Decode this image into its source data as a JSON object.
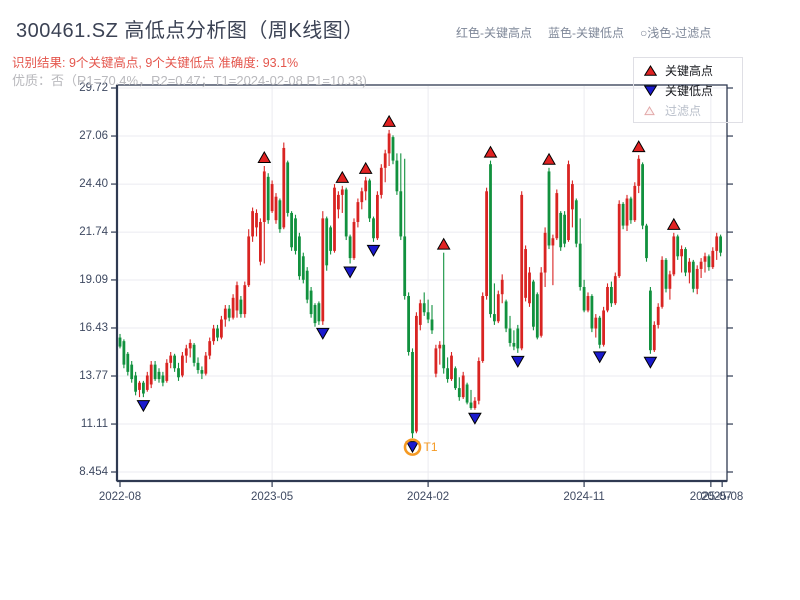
{
  "header": {
    "title": "300461.SZ 高低点分析图（周K线图）",
    "legend_inline": [
      {
        "label": "红色-关键高点"
      },
      {
        "label": "蓝色-关键低点"
      },
      {
        "label": "○浅色-过滤点"
      }
    ],
    "result_line": "识别结果: 9个关键高点, 9个关键低点  准确度: 93.1%",
    "quality_line": "优质：否（R1=70.4%，R2=0.47；T1=2024-02-08 P1=10.33)"
  },
  "legend_box": {
    "items": [
      {
        "label": "关键高点",
        "marker": "triangle-up-icon",
        "fill": "#e02222",
        "stroke": "#000000"
      },
      {
        "label": "关键低点",
        "marker": "triangle-down-icon",
        "fill": "#1a1acd",
        "stroke": "#000000"
      },
      {
        "label": "过滤点",
        "marker": "triangle-hollow-icon",
        "fill": "#fdf4f4",
        "stroke": "#e2a9a9"
      }
    ]
  },
  "chart_data": {
    "type": "candlestick",
    "title": "300461.SZ weekly K-line with key high/low markers",
    "ylim": [
      8.454,
      29.72
    ],
    "y_ticks": [
      29.72,
      27.06,
      24.4,
      21.74,
      19.09,
      16.43,
      13.77,
      11.11,
      8.454
    ],
    "y_tick_labels": [
      "29.72",
      "27.06",
      "24.40",
      "21.74",
      "19.09",
      "16.43",
      "13.77",
      "11.11",
      "8.454"
    ],
    "x_ticks": [
      {
        "label": "2022-08",
        "i": 0,
        "grid": false
      },
      {
        "label": "2023-05",
        "i": 39,
        "grid": true
      },
      {
        "label": "2024-02",
        "i": 79,
        "grid": true
      },
      {
        "label": "2024-11",
        "i": 119,
        "grid": true
      },
      {
        "label": "2025-07",
        "i": 151.5,
        "grid": true
      },
      {
        "label": "2025-08",
        "i": 154.4,
        "grid": false
      }
    ],
    "colors": {
      "up": "#d92422",
      "down": "#11913e",
      "key_high": "#e02222",
      "key_low": "#1a1acd",
      "marker_stroke": "#000000",
      "axis": "#2f3a52",
      "grid": "#ebebf0",
      "label": "#3e4961",
      "t1": "#f59a23"
    },
    "grid": true,
    "legend_position": "top-right",
    "candles_format": [
      "open",
      "high",
      "low",
      "close"
    ],
    "candles": [
      [
        15.9,
        16.1,
        15.3,
        15.4
      ],
      [
        15.7,
        15.8,
        14.2,
        14.4
      ],
      [
        15.0,
        15.1,
        13.8,
        14.0
      ],
      [
        14.4,
        14.6,
        13.4,
        13.6
      ],
      [
        13.8,
        14.0,
        12.7,
        12.9
      ],
      [
        13.0,
        13.5,
        12.6,
        13.4
      ],
      [
        13.4,
        13.5,
        12.6,
        12.8
      ],
      [
        13.0,
        14.0,
        12.9,
        13.8
      ],
      [
        13.3,
        14.6,
        13.1,
        14.4
      ],
      [
        14.4,
        14.6,
        13.5,
        13.6
      ],
      [
        14.0,
        14.2,
        13.4,
        13.6
      ],
      [
        13.8,
        14.0,
        13.2,
        13.4
      ],
      [
        13.5,
        14.7,
        13.4,
        14.5
      ],
      [
        14.5,
        15.1,
        14.2,
        14.9
      ],
      [
        14.9,
        15.0,
        14.0,
        14.2
      ],
      [
        14.2,
        14.5,
        13.5,
        13.7
      ],
      [
        13.8,
        15.1,
        13.7,
        14.9
      ],
      [
        14.9,
        15.5,
        14.5,
        15.3
      ],
      [
        15.3,
        15.8,
        14.8,
        15.6
      ],
      [
        15.5,
        15.6,
        14.3,
        14.5
      ],
      [
        14.5,
        14.8,
        13.9,
        14.1
      ],
      [
        14.1,
        14.3,
        13.6,
        13.9
      ],
      [
        13.9,
        15.1,
        13.8,
        14.9
      ],
      [
        14.9,
        15.9,
        14.7,
        15.7
      ],
      [
        15.7,
        16.6,
        15.5,
        16.4
      ],
      [
        16.4,
        16.6,
        15.7,
        15.9
      ],
      [
        15.9,
        17.1,
        15.8,
        16.9
      ],
      [
        16.9,
        17.7,
        16.5,
        17.5
      ],
      [
        17.5,
        17.7,
        16.8,
        17.0
      ],
      [
        17.0,
        18.3,
        16.9,
        18.1
      ],
      [
        17.4,
        19.0,
        17.0,
        18.8
      ],
      [
        18.0,
        18.2,
        17.0,
        17.2
      ],
      [
        17.2,
        19.0,
        17.0,
        18.8
      ],
      [
        18.8,
        21.9,
        18.7,
        21.5
      ],
      [
        21.5,
        23.1,
        21.2,
        22.9
      ],
      [
        22.0,
        23.0,
        21.5,
        22.8
      ],
      [
        20.1,
        22.5,
        19.9,
        22.3
      ],
      [
        22.3,
        25.4,
        20.0,
        25.1
      ],
      [
        24.8,
        25.0,
        22.2,
        22.4
      ],
      [
        22.9,
        24.6,
        22.8,
        24.4
      ],
      [
        22.4,
        23.9,
        22.2,
        23.7
      ],
      [
        23.5,
        23.6,
        21.7,
        21.9
      ],
      [
        22.0,
        26.7,
        21.9,
        26.4
      ],
      [
        25.6,
        25.7,
        22.6,
        22.8
      ],
      [
        22.8,
        22.9,
        20.7,
        20.9
      ],
      [
        22.5,
        22.7,
        20.5,
        20.7
      ],
      [
        21.5,
        21.7,
        19.1,
        19.3
      ],
      [
        20.4,
        20.6,
        18.9,
        19.1
      ],
      [
        19.6,
        19.8,
        17.8,
        18.0
      ],
      [
        18.5,
        18.7,
        17.0,
        17.2
      ],
      [
        17.7,
        17.8,
        16.5,
        16.7
      ],
      [
        17.8,
        17.9,
        16.6,
        16.8
      ],
      [
        16.8,
        22.9,
        16.6,
        22.5
      ],
      [
        22.5,
        22.6,
        19.6,
        19.9
      ],
      [
        22.0,
        22.1,
        20.5,
        20.7
      ],
      [
        20.7,
        24.4,
        20.6,
        24.2
      ],
      [
        23.0,
        24.0,
        22.5,
        23.8
      ],
      [
        23.8,
        24.3,
        22.8,
        24.1
      ],
      [
        24.1,
        24.2,
        21.3,
        21.5
      ],
      [
        21.5,
        21.6,
        20.0,
        20.3
      ],
      [
        20.3,
        22.5,
        20.2,
        22.3
      ],
      [
        22.3,
        23.6,
        22.0,
        23.4
      ],
      [
        23.4,
        24.2,
        23.0,
        24.0
      ],
      [
        24.0,
        24.8,
        23.5,
        24.6
      ],
      [
        24.6,
        24.7,
        22.3,
        22.5
      ],
      [
        22.5,
        22.6,
        21.2,
        21.4
      ],
      [
        21.4,
        24.0,
        21.3,
        23.8
      ],
      [
        23.8,
        25.5,
        23.6,
        25.3
      ],
      [
        25.3,
        26.3,
        24.5,
        26.1
      ],
      [
        26.1,
        27.4,
        25.4,
        27.2
      ],
      [
        27.0,
        27.1,
        25.5,
        25.7
      ],
      [
        25.7,
        26.1,
        23.8,
        24.0
      ],
      [
        24.0,
        26.1,
        21.3,
        21.5
      ],
      [
        21.5,
        25.8,
        18.0,
        18.2
      ],
      [
        18.2,
        18.4,
        14.9,
        15.1
      ],
      [
        15.1,
        15.3,
        10.33,
        10.6
      ],
      [
        10.7,
        17.3,
        10.6,
        17.1
      ],
      [
        16.6,
        18.0,
        16.3,
        17.8
      ],
      [
        17.8,
        18.4,
        17.1,
        17.3
      ],
      [
        17.3,
        18.0,
        16.7,
        16.9
      ],
      [
        16.9,
        17.7,
        16.1,
        16.3
      ],
      [
        13.9,
        15.5,
        13.7,
        15.3
      ],
      [
        15.3,
        15.7,
        14.4,
        15.5
      ],
      [
        15.5,
        20.6,
        13.9,
        14.2
      ],
      [
        14.2,
        14.8,
        13.4,
        13.6
      ],
      [
        13.6,
        15.1,
        13.5,
        14.9
      ],
      [
        14.2,
        14.3,
        13.0,
        13.1
      ],
      [
        13.1,
        13.7,
        12.4,
        12.6
      ],
      [
        12.6,
        14.0,
        12.5,
        13.8
      ],
      [
        13.3,
        13.4,
        12.2,
        12.3
      ],
      [
        12.3,
        13.0,
        11.9,
        12.0
      ],
      [
        12.0,
        12.6,
        11.9,
        12.4
      ],
      [
        12.4,
        14.8,
        12.2,
        14.6
      ],
      [
        14.6,
        18.4,
        14.5,
        18.2
      ],
      [
        18.2,
        24.2,
        18.0,
        24.0
      ],
      [
        25.5,
        25.7,
        17.0,
        17.2
      ],
      [
        17.2,
        18.9,
        16.6,
        16.8
      ],
      [
        16.8,
        18.5,
        16.7,
        18.3
      ],
      [
        18.3,
        19.4,
        17.8,
        19.1
      ],
      [
        17.9,
        18.0,
        16.2,
        16.4
      ],
      [
        16.4,
        17.1,
        15.4,
        15.6
      ],
      [
        15.6,
        16.3,
        15.2,
        15.4
      ],
      [
        16.4,
        16.6,
        15.05,
        15.3
      ],
      [
        15.3,
        24.0,
        15.2,
        23.8
      ],
      [
        18.1,
        21.0,
        17.9,
        20.8
      ],
      [
        17.8,
        19.8,
        17.6,
        19.5
      ],
      [
        19.0,
        19.1,
        16.3,
        16.5
      ],
      [
        18.3,
        18.4,
        15.8,
        15.9
      ],
      [
        16.0,
        19.8,
        15.9,
        19.5
      ],
      [
        19.5,
        22.0,
        18.7,
        21.7
      ],
      [
        25.1,
        25.3,
        20.8,
        21.0
      ],
      [
        21.0,
        21.6,
        18.8,
        21.4
      ],
      [
        21.4,
        24.1,
        21.3,
        23.9
      ],
      [
        22.8,
        22.9,
        20.7,
        20.9
      ],
      [
        22.7,
        22.9,
        20.9,
        21.1
      ],
      [
        21.3,
        25.7,
        21.2,
        25.5
      ],
      [
        23.0,
        24.6,
        22.0,
        24.4
      ],
      [
        23.5,
        23.6,
        20.9,
        21.1
      ],
      [
        21.1,
        22.5,
        18.5,
        18.7
      ],
      [
        18.7,
        19.1,
        17.3,
        17.4
      ],
      [
        17.4,
        18.4,
        17.3,
        18.2
      ],
      [
        18.2,
        18.3,
        16.2,
        16.4
      ],
      [
        16.4,
        17.2,
        15.9,
        17.0
      ],
      [
        17.0,
        17.1,
        15.3,
        15.5
      ],
      [
        15.5,
        17.6,
        15.4,
        17.4
      ],
      [
        17.4,
        18.9,
        17.3,
        18.7
      ],
      [
        18.7,
        19.0,
        17.6,
        17.8
      ],
      [
        17.8,
        19.5,
        17.7,
        19.3
      ],
      [
        19.3,
        23.5,
        19.2,
        23.3
      ],
      [
        23.3,
        23.4,
        21.9,
        22.1
      ],
      [
        22.1,
        23.8,
        21.8,
        23.6
      ],
      [
        23.6,
        23.7,
        22.2,
        22.4
      ],
      [
        22.4,
        24.5,
        22.3,
        24.3
      ],
      [
        24.3,
        26.0,
        23.9,
        25.8
      ],
      [
        25.5,
        25.6,
        21.9,
        22.1
      ],
      [
        22.1,
        22.2,
        20.1,
        20.3
      ],
      [
        18.5,
        18.7,
        15.0,
        15.2
      ],
      [
        15.2,
        16.8,
        15.1,
        16.6
      ],
      [
        16.6,
        17.8,
        16.4,
        17.6
      ],
      [
        17.6,
        20.4,
        17.5,
        20.2
      ],
      [
        20.2,
        20.3,
        18.4,
        18.6
      ],
      [
        18.6,
        19.6,
        18.0,
        19.4
      ],
      [
        19.4,
        21.7,
        19.3,
        21.5
      ],
      [
        21.5,
        21.6,
        20.2,
        20.4
      ],
      [
        20.4,
        21.0,
        19.5,
        20.8
      ],
      [
        20.8,
        20.9,
        19.3,
        19.5
      ],
      [
        19.5,
        20.3,
        18.9,
        20.1
      ],
      [
        20.1,
        20.2,
        18.4,
        18.6
      ],
      [
        18.6,
        19.9,
        18.3,
        19.7
      ],
      [
        19.7,
        20.3,
        19.2,
        20.1
      ],
      [
        20.1,
        20.6,
        19.5,
        20.4
      ],
      [
        20.4,
        20.5,
        19.6,
        19.8
      ],
      [
        19.8,
        20.9,
        19.7,
        20.7
      ],
      [
        20.7,
        21.7,
        20.2,
        21.5
      ],
      [
        21.5,
        21.6,
        20.4,
        20.6
      ]
    ],
    "key_highs": [
      37,
      57,
      63,
      69,
      83,
      95,
      110,
      133,
      142
    ],
    "key_lows": [
      6,
      52,
      59,
      65,
      75,
      91,
      102,
      123,
      136
    ],
    "t1": {
      "index": 75,
      "label": "T1",
      "price": 10.33
    }
  }
}
